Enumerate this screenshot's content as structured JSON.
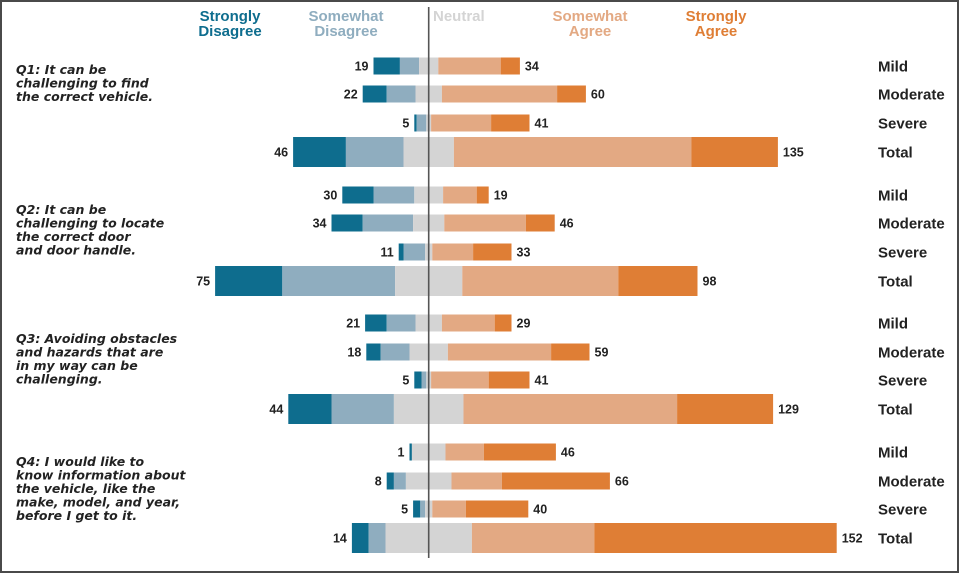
{
  "chart_data": {
    "type": "bar",
    "subtype": "diverging-stacked-horizontal",
    "title": "",
    "xlabel": "",
    "ylabel": "",
    "grid": false,
    "legend_placement": "top",
    "legend": [
      {
        "key": "strongly_disagree",
        "label": "Strongly Disagree",
        "color": "#0e6d8e"
      },
      {
        "key": "somewhat_disagree",
        "label": "Somewhat Disagree",
        "color": "#8fadbf"
      },
      {
        "key": "neutral",
        "label": "Neutral",
        "color": "#d4d4d4"
      },
      {
        "key": "somewhat_agree",
        "label": "Somewhat Agree",
        "color": "#e3a983"
      },
      {
        "key": "strongly_agree",
        "label": "Strongly Agree",
        "color": "#df7e35"
      }
    ],
    "center_line_color": "#555555",
    "row_categories": [
      "Mild",
      "Moderate",
      "Severe",
      "Total"
    ],
    "questions": [
      {
        "id": "Q1",
        "label_lines": [
          "Q1: It can be",
          "challenging to find",
          "the correct vehicle."
        ],
        "rows": [
          {
            "category": "Mild",
            "strongly_disagree": 11,
            "somewhat_disagree": 8,
            "neutral": 8,
            "somewhat_agree": 26,
            "strongly_agree": 8,
            "disagree_total": 19,
            "agree_total": 34
          },
          {
            "category": "Moderate",
            "strongly_disagree": 10,
            "somewhat_disagree": 12,
            "neutral": 11,
            "somewhat_agree": 48,
            "strongly_agree": 12,
            "disagree_total": 22,
            "agree_total": 60
          },
          {
            "category": "Severe",
            "strongly_disagree": 1,
            "somewhat_disagree": 4,
            "neutral": 2,
            "somewhat_agree": 25,
            "strongly_agree": 16,
            "disagree_total": 5,
            "agree_total": 41
          },
          {
            "category": "Total",
            "strongly_disagree": 22,
            "somewhat_disagree": 24,
            "neutral": 21,
            "somewhat_agree": 99,
            "strongly_agree": 36,
            "disagree_total": 46,
            "agree_total": 135
          }
        ]
      },
      {
        "id": "Q2",
        "label_lines": [
          "Q2: It can be",
          "challenging to locate",
          "the correct door",
          "and door handle."
        ],
        "rows": [
          {
            "category": "Mild",
            "strongly_disagree": 13,
            "somewhat_disagree": 17,
            "neutral": 12,
            "somewhat_agree": 14,
            "strongly_agree": 5,
            "disagree_total": 30,
            "agree_total": 19
          },
          {
            "category": "Moderate",
            "strongly_disagree": 13,
            "somewhat_disagree": 21,
            "neutral": 13,
            "somewhat_agree": 34,
            "strongly_agree": 12,
            "disagree_total": 34,
            "agree_total": 46
          },
          {
            "category": "Severe",
            "strongly_disagree": 2,
            "somewhat_disagree": 9,
            "neutral": 3,
            "somewhat_agree": 17,
            "strongly_agree": 16,
            "disagree_total": 11,
            "agree_total": 33
          },
          {
            "category": "Total",
            "strongly_disagree": 28,
            "somewhat_disagree": 47,
            "neutral": 28,
            "somewhat_agree": 65,
            "strongly_agree": 33,
            "disagree_total": 75,
            "agree_total": 98
          }
        ]
      },
      {
        "id": "Q3",
        "label_lines": [
          "Q3: Avoiding obstacles",
          "and hazards that are",
          "in my way can be",
          "challenging."
        ],
        "rows": [
          {
            "category": "Mild",
            "strongly_disagree": 9,
            "somewhat_disagree": 12,
            "neutral": 11,
            "somewhat_agree": 22,
            "strongly_agree": 7,
            "disagree_total": 21,
            "agree_total": 29
          },
          {
            "category": "Moderate",
            "strongly_disagree": 6,
            "somewhat_disagree": 12,
            "neutral": 16,
            "somewhat_agree": 43,
            "strongly_agree": 16,
            "disagree_total": 18,
            "agree_total": 59
          },
          {
            "category": "Severe",
            "strongly_disagree": 3,
            "somewhat_disagree": 2,
            "neutral": 2,
            "somewhat_agree": 24,
            "strongly_agree": 17,
            "disagree_total": 5,
            "agree_total": 41
          },
          {
            "category": "Total",
            "strongly_disagree": 18,
            "somewhat_disagree": 26,
            "neutral": 29,
            "somewhat_agree": 89,
            "strongly_agree": 40,
            "disagree_total": 44,
            "agree_total": 129
          }
        ]
      },
      {
        "id": "Q4",
        "label_lines": [
          "Q4: I would like to",
          "know information about",
          "the vehicle, like the",
          "make, model, and year,",
          "before I get to it."
        ],
        "rows": [
          {
            "category": "Mild",
            "strongly_disagree": 1,
            "somewhat_disagree": 0,
            "neutral": 14,
            "somewhat_agree": 16,
            "strongly_agree": 30,
            "disagree_total": 1,
            "agree_total": 46
          },
          {
            "category": "Moderate",
            "strongly_disagree": 3,
            "somewhat_disagree": 5,
            "neutral": 19,
            "somewhat_agree": 21,
            "strongly_agree": 45,
            "disagree_total": 8,
            "agree_total": 66
          },
          {
            "category": "Severe",
            "strongly_disagree": 3,
            "somewhat_disagree": 2,
            "neutral": 3,
            "somewhat_agree": 14,
            "strongly_agree": 26,
            "disagree_total": 5,
            "agree_total": 40
          },
          {
            "category": "Total",
            "strongly_disagree": 7,
            "somewhat_disagree": 7,
            "neutral": 36,
            "somewhat_agree": 51,
            "strongly_agree": 101,
            "disagree_total": 14,
            "agree_total": 152
          }
        ]
      }
    ]
  }
}
